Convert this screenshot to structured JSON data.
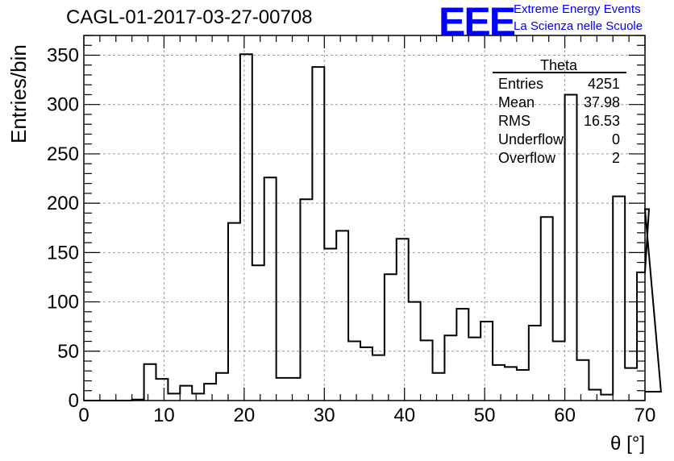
{
  "title": "CAGL-01-2017-03-27-00708",
  "logo": {
    "mark": "EEE",
    "line1": "Extreme Energy Events",
    "line2": "La Scienza nelle Scuole",
    "color": "#0000ff"
  },
  "stats_box": {
    "name": "Theta",
    "rows": [
      {
        "label": "Entries",
        "value": "4251"
      },
      {
        "label": "Mean",
        "value": "37.98"
      },
      {
        "label": "RMS",
        "value": "16.53"
      },
      {
        "label": "Underflow",
        "value": "0"
      },
      {
        "label": "Overflow",
        "value": "2"
      }
    ]
  },
  "chart_data": {
    "type": "histogram",
    "title": "CAGL-01-2017-03-27-00708",
    "xlabel": "θ [°]",
    "ylabel": "Entries/bin",
    "xlim": [
      0,
      70
    ],
    "ylim": [
      0,
      370
    ],
    "xticks": [
      0,
      10,
      20,
      30,
      40,
      50,
      60,
      70
    ],
    "yticks": [
      0,
      50,
      100,
      150,
      200,
      250,
      300,
      350
    ],
    "grid": true,
    "bin_width": 1.5,
    "bin_edges_start": 0,
    "values": [
      0,
      0,
      0,
      0,
      1,
      37,
      22,
      7,
      15,
      7,
      17,
      28,
      180,
      351,
      137,
      226,
      23,
      23,
      204,
      338,
      154,
      172,
      60,
      54,
      46,
      128,
      164,
      100,
      61,
      28,
      66,
      93,
      64,
      80,
      36,
      34,
      31,
      76,
      186,
      60,
      310,
      41,
      11,
      6,
      207,
      33,
      130,
      194,
      9
    ],
    "line_color": "#000000"
  }
}
